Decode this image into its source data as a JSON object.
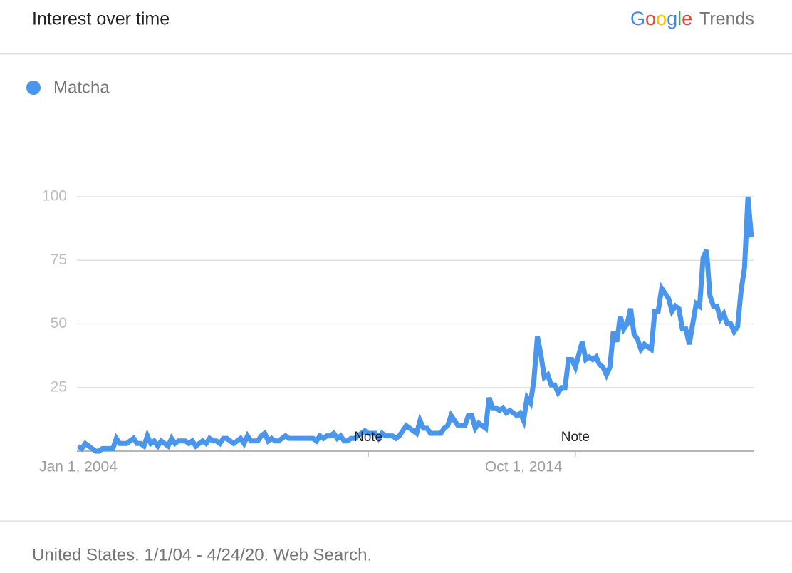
{
  "chart_data": {
    "type": "line",
    "title": "Interest over time",
    "brand": "Google",
    "product": "Trends",
    "caption": "United States. 1/1/04 - 4/24/20. Web Search.",
    "categories": [
      "Jan 1, 2004",
      null,
      null,
      null,
      null,
      null,
      null,
      null,
      null,
      null,
      null,
      null,
      null,
      null,
      null,
      null,
      null,
      null,
      null,
      null,
      null,
      null,
      null,
      null,
      null,
      null,
      null,
      null,
      null,
      null,
      null,
      null,
      null,
      null,
      null,
      null,
      null,
      null,
      null,
      null,
      null,
      null,
      null,
      null,
      null,
      null,
      null,
      null,
      null,
      null,
      null,
      null,
      null,
      null,
      null,
      null,
      null,
      null,
      null,
      null,
      null,
      null,
      null,
      null,
      null,
      null,
      null,
      null,
      null,
      null,
      null,
      null,
      null,
      null,
      null,
      null,
      null,
      null,
      null,
      null,
      null,
      null,
      null,
      null,
      null,
      null,
      null,
      null,
      null,
      null,
      null,
      null,
      null,
      null,
      null,
      null,
      null,
      null,
      null,
      null,
      null,
      null,
      null,
      null,
      null,
      null,
      null,
      null,
      null,
      null,
      null,
      null,
      null,
      null,
      null,
      null,
      null,
      null,
      null,
      null,
      null,
      null,
      null,
      null,
      null,
      null,
      null,
      null,
      null,
      "Oct 1, 2014",
      null,
      null,
      null,
      null,
      null,
      null,
      null,
      null,
      null,
      null,
      null,
      null,
      null,
      null,
      null,
      null,
      null,
      null,
      null,
      null,
      null,
      null,
      null,
      null,
      null,
      null,
      null,
      null,
      null,
      null,
      null,
      null,
      null,
      null,
      null,
      null,
      null,
      null,
      null,
      null,
      null,
      null,
      null,
      null,
      null,
      null,
      null,
      null,
      null,
      null,
      null,
      null,
      null,
      null,
      null,
      null,
      null,
      null,
      null,
      null,
      null,
      null,
      null,
      null,
      null,
      null
    ],
    "series": [
      {
        "name": "Matcha",
        "color": "#4a96ec",
        "values": [
          2,
          1,
          3,
          2,
          1,
          0,
          0,
          1,
          1,
          1,
          1,
          5,
          3,
          3,
          3,
          4,
          5,
          3,
          3,
          2,
          6,
          3,
          4,
          2,
          4,
          3,
          2,
          5,
          3,
          4,
          4,
          4,
          3,
          4,
          2,
          3,
          4,
          3,
          5,
          4,
          4,
          3,
          5,
          5,
          4,
          3,
          4,
          5,
          3,
          6,
          4,
          4,
          4,
          6,
          7,
          4,
          5,
          4,
          4,
          5,
          6,
          5,
          5,
          5,
          5,
          5,
          5,
          5,
          5,
          4,
          6,
          5,
          6,
          6,
          7,
          5,
          6,
          4,
          4,
          5,
          5,
          6,
          7,
          8,
          7,
          7,
          7,
          5,
          7,
          6,
          6,
          6,
          5,
          6,
          8,
          10,
          9,
          8,
          7,
          12,
          9,
          9,
          7,
          7,
          7,
          7,
          9,
          10,
          14,
          12,
          10,
          10,
          10,
          14,
          14,
          9,
          11,
          10,
          9,
          21,
          17,
          17,
          16,
          17,
          15,
          16,
          15,
          14,
          15,
          12,
          21,
          19,
          28,
          45,
          38,
          29,
          30,
          26,
          26,
          23,
          25,
          25,
          36,
          36,
          33,
          38,
          43,
          36,
          37,
          36,
          37,
          34,
          33,
          30,
          33,
          47,
          43,
          53,
          48,
          50,
          56,
          46,
          44,
          40,
          42,
          41,
          40,
          55,
          55,
          64,
          62,
          60,
          55,
          57,
          56,
          48,
          48,
          42,
          50,
          58,
          57,
          76,
          79,
          61,
          57,
          57,
          52,
          54,
          50,
          50,
          47,
          49,
          63,
          72,
          100,
          84
        ]
      }
    ],
    "annotations": [
      {
        "text": "Note",
        "at": 84
      },
      {
        "text": "Note",
        "at": 144
      }
    ],
    "ylim": [
      0,
      100
    ],
    "yticks": [
      25,
      50,
      75,
      100
    ],
    "grid": true
  }
}
